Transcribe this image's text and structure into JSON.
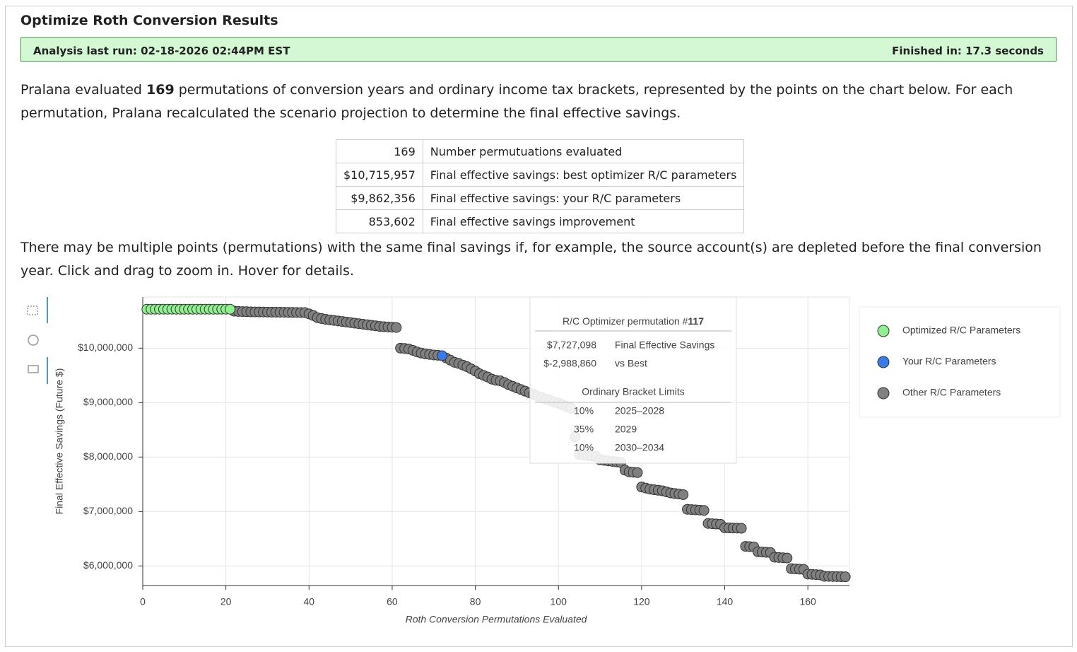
{
  "header": {
    "title": "Optimize Roth Conversion Results",
    "last_run": "Analysis last run: 02-18-2026 02:44PM EST",
    "finished": "Finished in: 17.3 seconds"
  },
  "intro": {
    "before": "Pralana evaluated ",
    "count": "169",
    "after": " permutations of conversion years and ordinary income tax brackets, represented by the points on the chart below. For each permutation, Pralana recalculated the scenario projection to determine the final effective savings."
  },
  "table": {
    "rows": [
      [
        "169",
        "Number permutuations evaluated"
      ],
      [
        "$10,715,957",
        "Final effective savings: best optimizer R/C parameters"
      ],
      [
        "$9,862,356",
        "Final effective savings: your R/C parameters"
      ],
      [
        "853,602",
        "Final effective savings improvement"
      ]
    ]
  },
  "note": "There may be multiple points (permutations) with the same final savings if, for example, the source account(s) are depleted before the final conversion year. Click and drag to zoom in. Hover for details.",
  "tooltip": {
    "title_prefix": "R/C Optimizer permutation #",
    "title_num": "117",
    "rows": [
      [
        "$7,727,098",
        "Final Effective Savings"
      ],
      [
        "$-2,988,860",
        "vs Best"
      ]
    ],
    "bracket_title": "Ordinary Bracket Limits",
    "brackets": [
      [
        "10%",
        "2025–2028"
      ],
      [
        "35%",
        "2029"
      ],
      [
        "10%",
        "2030–2034"
      ]
    ]
  },
  "chart_data": {
    "type": "scatter",
    "x_label": "Roth Conversion Permutations Evaluated",
    "y_label": "Final Effective Savings (Future $)",
    "xlim": [
      0,
      170
    ],
    "xticks": [
      0,
      20,
      40,
      60,
      80,
      100,
      120,
      140,
      160
    ],
    "ylim": [
      5640000,
      10940000
    ],
    "yticks": [
      {
        "value": 6000000,
        "label": "$6,000,000"
      },
      {
        "value": 7000000,
        "label": "$7,000,000"
      },
      {
        "value": 8000000,
        "label": "$8,000,000"
      },
      {
        "value": 9000000,
        "label": "$9,000,000"
      },
      {
        "value": 10000000,
        "label": "$10,000,000"
      }
    ],
    "grid": true,
    "legend": "right",
    "series": [
      {
        "name": "Optimized R/C Parameters",
        "color": "#90f090",
        "x": [
          1,
          2,
          3,
          4,
          5,
          6,
          7,
          8,
          9,
          10,
          11,
          12,
          13,
          14,
          15,
          16,
          17,
          18,
          19,
          20,
          21
        ],
        "values": [
          10715957,
          10715957,
          10715957,
          10715957,
          10715957,
          10715957,
          10715957,
          10715957,
          10715957,
          10715957,
          10715957,
          10715957,
          10715957,
          10715957,
          10715957,
          10715957,
          10715957,
          10715957,
          10715957,
          10715957,
          10715957
        ]
      },
      {
        "name": "Your R/C Parameters",
        "color": "#3b7be8",
        "x": [
          72
        ],
        "values": [
          9862356
        ]
      },
      {
        "name": "Other R/C Parameters",
        "color": "#808080",
        "x": [
          22,
          23,
          24,
          25,
          26,
          27,
          28,
          29,
          30,
          31,
          32,
          33,
          34,
          35,
          36,
          37,
          38,
          39,
          40,
          41,
          42,
          43,
          44,
          45,
          46,
          47,
          48,
          49,
          50,
          51,
          52,
          53,
          54,
          55,
          56,
          57,
          58,
          59,
          60,
          61,
          62,
          63,
          64,
          65,
          66,
          67,
          68,
          69,
          70,
          71,
          73,
          74,
          75,
          76,
          77,
          78,
          79,
          80,
          81,
          82,
          83,
          84,
          85,
          86,
          87,
          88,
          89,
          90,
          91,
          92,
          93,
          94,
          95,
          96,
          97,
          98,
          99,
          100,
          101,
          102,
          103,
          104,
          105,
          106,
          107,
          108,
          109,
          110,
          111,
          112,
          113,
          114,
          115,
          116,
          117,
          118,
          119,
          120,
          121,
          122,
          123,
          124,
          125,
          126,
          127,
          128,
          129,
          130,
          131,
          132,
          133,
          134,
          135,
          136,
          137,
          138,
          139,
          140,
          141,
          142,
          143,
          144,
          145,
          146,
          147,
          148,
          149,
          150,
          151,
          152,
          153,
          154,
          155,
          156,
          157,
          158,
          159,
          160,
          161,
          162,
          163,
          164,
          165,
          166,
          167,
          168,
          169
        ],
        "values": [
          10680000,
          10675000,
          10672000,
          10670000,
          10668000,
          10666000,
          10665000,
          10664000,
          10663000,
          10662000,
          10661000,
          10660000,
          10659000,
          10658000,
          10657000,
          10656000,
          10655000,
          10654000,
          10630000,
          10600000,
          10560000,
          10545000,
          10530000,
          10520000,
          10510000,
          10500000,
          10490000,
          10480000,
          10470000,
          10460000,
          10450000,
          10440000,
          10430000,
          10420000,
          10410000,
          10400000,
          10395000,
          10390000,
          10385000,
          10380000,
          10000000,
          9995000,
          9985000,
          9960000,
          9930000,
          9910000,
          9895000,
          9885000,
          9875000,
          9870000,
          9820000,
          9780000,
          9740000,
          9720000,
          9690000,
          9660000,
          9620000,
          9580000,
          9530000,
          9500000,
          9470000,
          9430000,
          9410000,
          9400000,
          9370000,
          9330000,
          9300000,
          9270000,
          9240000,
          9210000,
          9180000,
          9150000,
          9120000,
          9090000,
          9060000,
          9040000,
          9010000,
          8990000,
          8960000,
          8930000,
          8900000,
          8370000,
          8050000,
          8040000,
          8030000,
          8020000,
          8010000,
          7950000,
          7940000,
          7930000,
          7920000,
          7910000,
          7900000,
          7760000,
          7727098,
          7720000,
          7715000,
          7450000,
          7430000,
          7410000,
          7400000,
          7390000,
          7380000,
          7360000,
          7340000,
          7330000,
          7320000,
          7310000,
          7040000,
          7035000,
          7030000,
          7025000,
          7020000,
          6780000,
          6775000,
          6770000,
          6765000,
          6700000,
          6698000,
          6696000,
          6694000,
          6692000,
          6360000,
          6355000,
          6350000,
          6260000,
          6255000,
          6250000,
          6245000,
          6160000,
          6155000,
          6150000,
          6145000,
          5950000,
          5945000,
          5940000,
          5935000,
          5850000,
          5845000,
          5840000,
          5835000,
          5810000,
          5808000,
          5806000,
          5804000,
          5802000,
          5800000
        ]
      }
    ]
  }
}
